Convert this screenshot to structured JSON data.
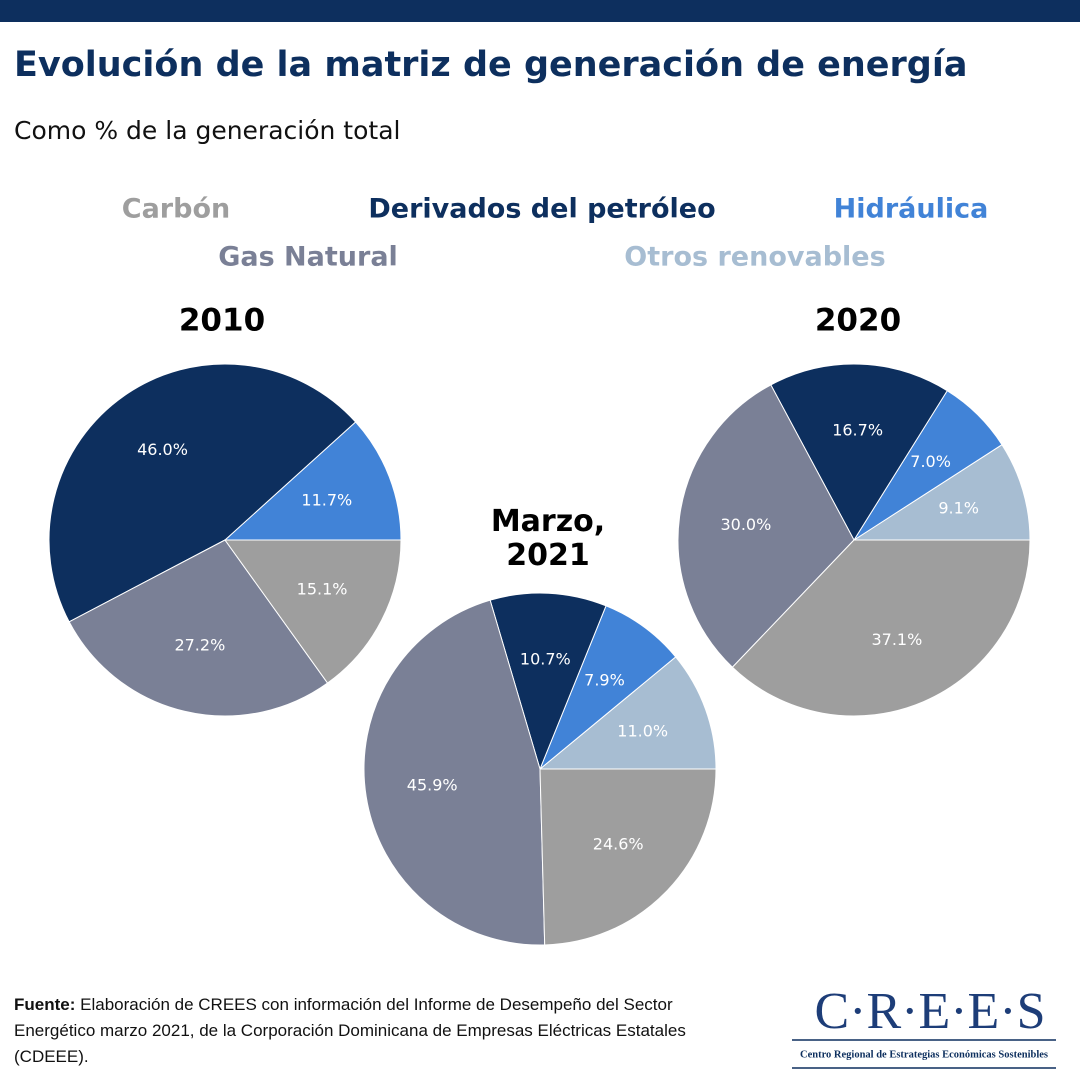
{
  "header": {
    "title": "Evolución de la matriz de generación de energía",
    "subtitle": "Como % de la generación total"
  },
  "legend": [
    {
      "name": "Carbón",
      "color": "#9e9e9e"
    },
    {
      "name": "Derivados del petróleo",
      "color": "#0d2f5e"
    },
    {
      "name": "Hidráulica",
      "color": "#4183d7"
    },
    {
      "name": "Gas Natural",
      "color": "#7a8096"
    },
    {
      "name": "Otros renovables",
      "color": "#a7bdd2"
    }
  ],
  "chart_data": [
    {
      "type": "pie",
      "title": "2010",
      "categories": [
        "Hidráulica",
        "Derivados del petróleo",
        "Gas Natural",
        "Carbón"
      ],
      "values": [
        11.7,
        46.0,
        27.2,
        15.1
      ],
      "value_labels": [
        "11.7%",
        "46.0%",
        "27.2%",
        "15.1%"
      ]
    },
    {
      "type": "pie",
      "title": "Marzo, 2021",
      "categories": [
        "Otros renovables",
        "Hidráulica",
        "Derivados del petróleo",
        "Gas Natural",
        "Carbón"
      ],
      "values": [
        11.0,
        7.9,
        10.7,
        45.9,
        24.6
      ],
      "value_labels": [
        "11.0%",
        "7.9%",
        "10.7%",
        "45.9%",
        "24.6%"
      ]
    },
    {
      "type": "pie",
      "title": "2020",
      "categories": [
        "Otros renovables",
        "Hidráulica",
        "Derivados del petróleo",
        "Gas Natural",
        "Carbón"
      ],
      "values": [
        9.1,
        7.0,
        16.7,
        30.0,
        37.1
      ],
      "value_labels": [
        "9.1%",
        "7.0%",
        "16.7%",
        "30.0%",
        "37.1%"
      ]
    }
  ],
  "source": {
    "label": "Fuente:",
    "text": "Elaboración de CREES con información del Informe de Desempeño del Sector Energético marzo 2021, de la Corporación Dominicana de Empresas Eléctricas Estatales (CDEEE)."
  },
  "logo": {
    "name": "C·R·E·E·S",
    "full_name": "Centro Regional de Estrategias Económicas Sostenibles"
  }
}
